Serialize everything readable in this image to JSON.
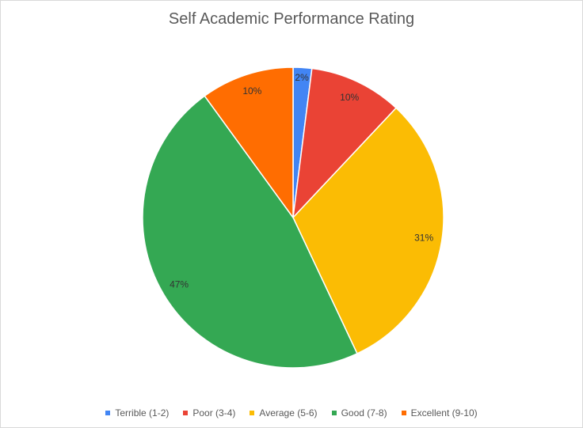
{
  "chart_data": {
    "type": "pie",
    "title": "Self Academic Performance Rating",
    "legend_position": "bottom",
    "slices": [
      {
        "label": "Terrible (1-2)",
        "value": 2,
        "display": "2%",
        "color": "#4285f4"
      },
      {
        "label": "Poor (3-4)",
        "value": 10,
        "display": "10%",
        "color": "#ea4335"
      },
      {
        "label": "Average (5-6)",
        "value": 31,
        "display": "31%",
        "color": "#fbbc04"
      },
      {
        "label": "Good (7-8)",
        "value": 47,
        "display": "47%",
        "color": "#34a853"
      },
      {
        "label": "Excellent (9-10)",
        "value": 10,
        "display": "10%",
        "color": "#ff6d01"
      }
    ]
  }
}
